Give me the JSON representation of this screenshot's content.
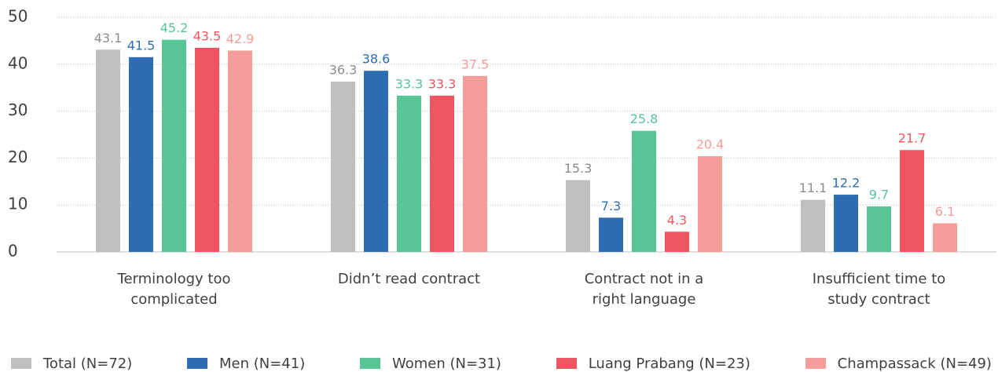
{
  "chart_data": {
    "type": "bar",
    "categories": [
      "Terminology too\ncomplicated",
      "Didn’t read contract",
      "Contract not in a\nright language",
      "Insufficient time to\nstudy contract"
    ],
    "series": [
      {
        "name": "Total (N=72)",
        "color": "#bfbfbf",
        "values": [
          43.1,
          36.3,
          15.3,
          11.1
        ]
      },
      {
        "name": "Men (N=41)",
        "color": "#2e6db4",
        "values": [
          41.5,
          38.6,
          7.3,
          12.2
        ]
      },
      {
        "name": "Women (N=31)",
        "color": "#57c596",
        "values": [
          45.2,
          33.3,
          25.8,
          9.7
        ]
      },
      {
        "name": "Luang Prabang (N=23)",
        "color": "#ef5560",
        "values": [
          43.5,
          33.3,
          4.3,
          21.7
        ]
      },
      {
        "name": "Champassack (N=49)",
        "color": "#f59d9a",
        "values": [
          42.9,
          37.5,
          20.4,
          6.1
        ]
      }
    ],
    "ylim": [
      0,
      50
    ],
    "yticks": [
      0,
      10,
      20,
      30,
      40,
      50
    ],
    "grid": true,
    "legend": "bottom"
  }
}
